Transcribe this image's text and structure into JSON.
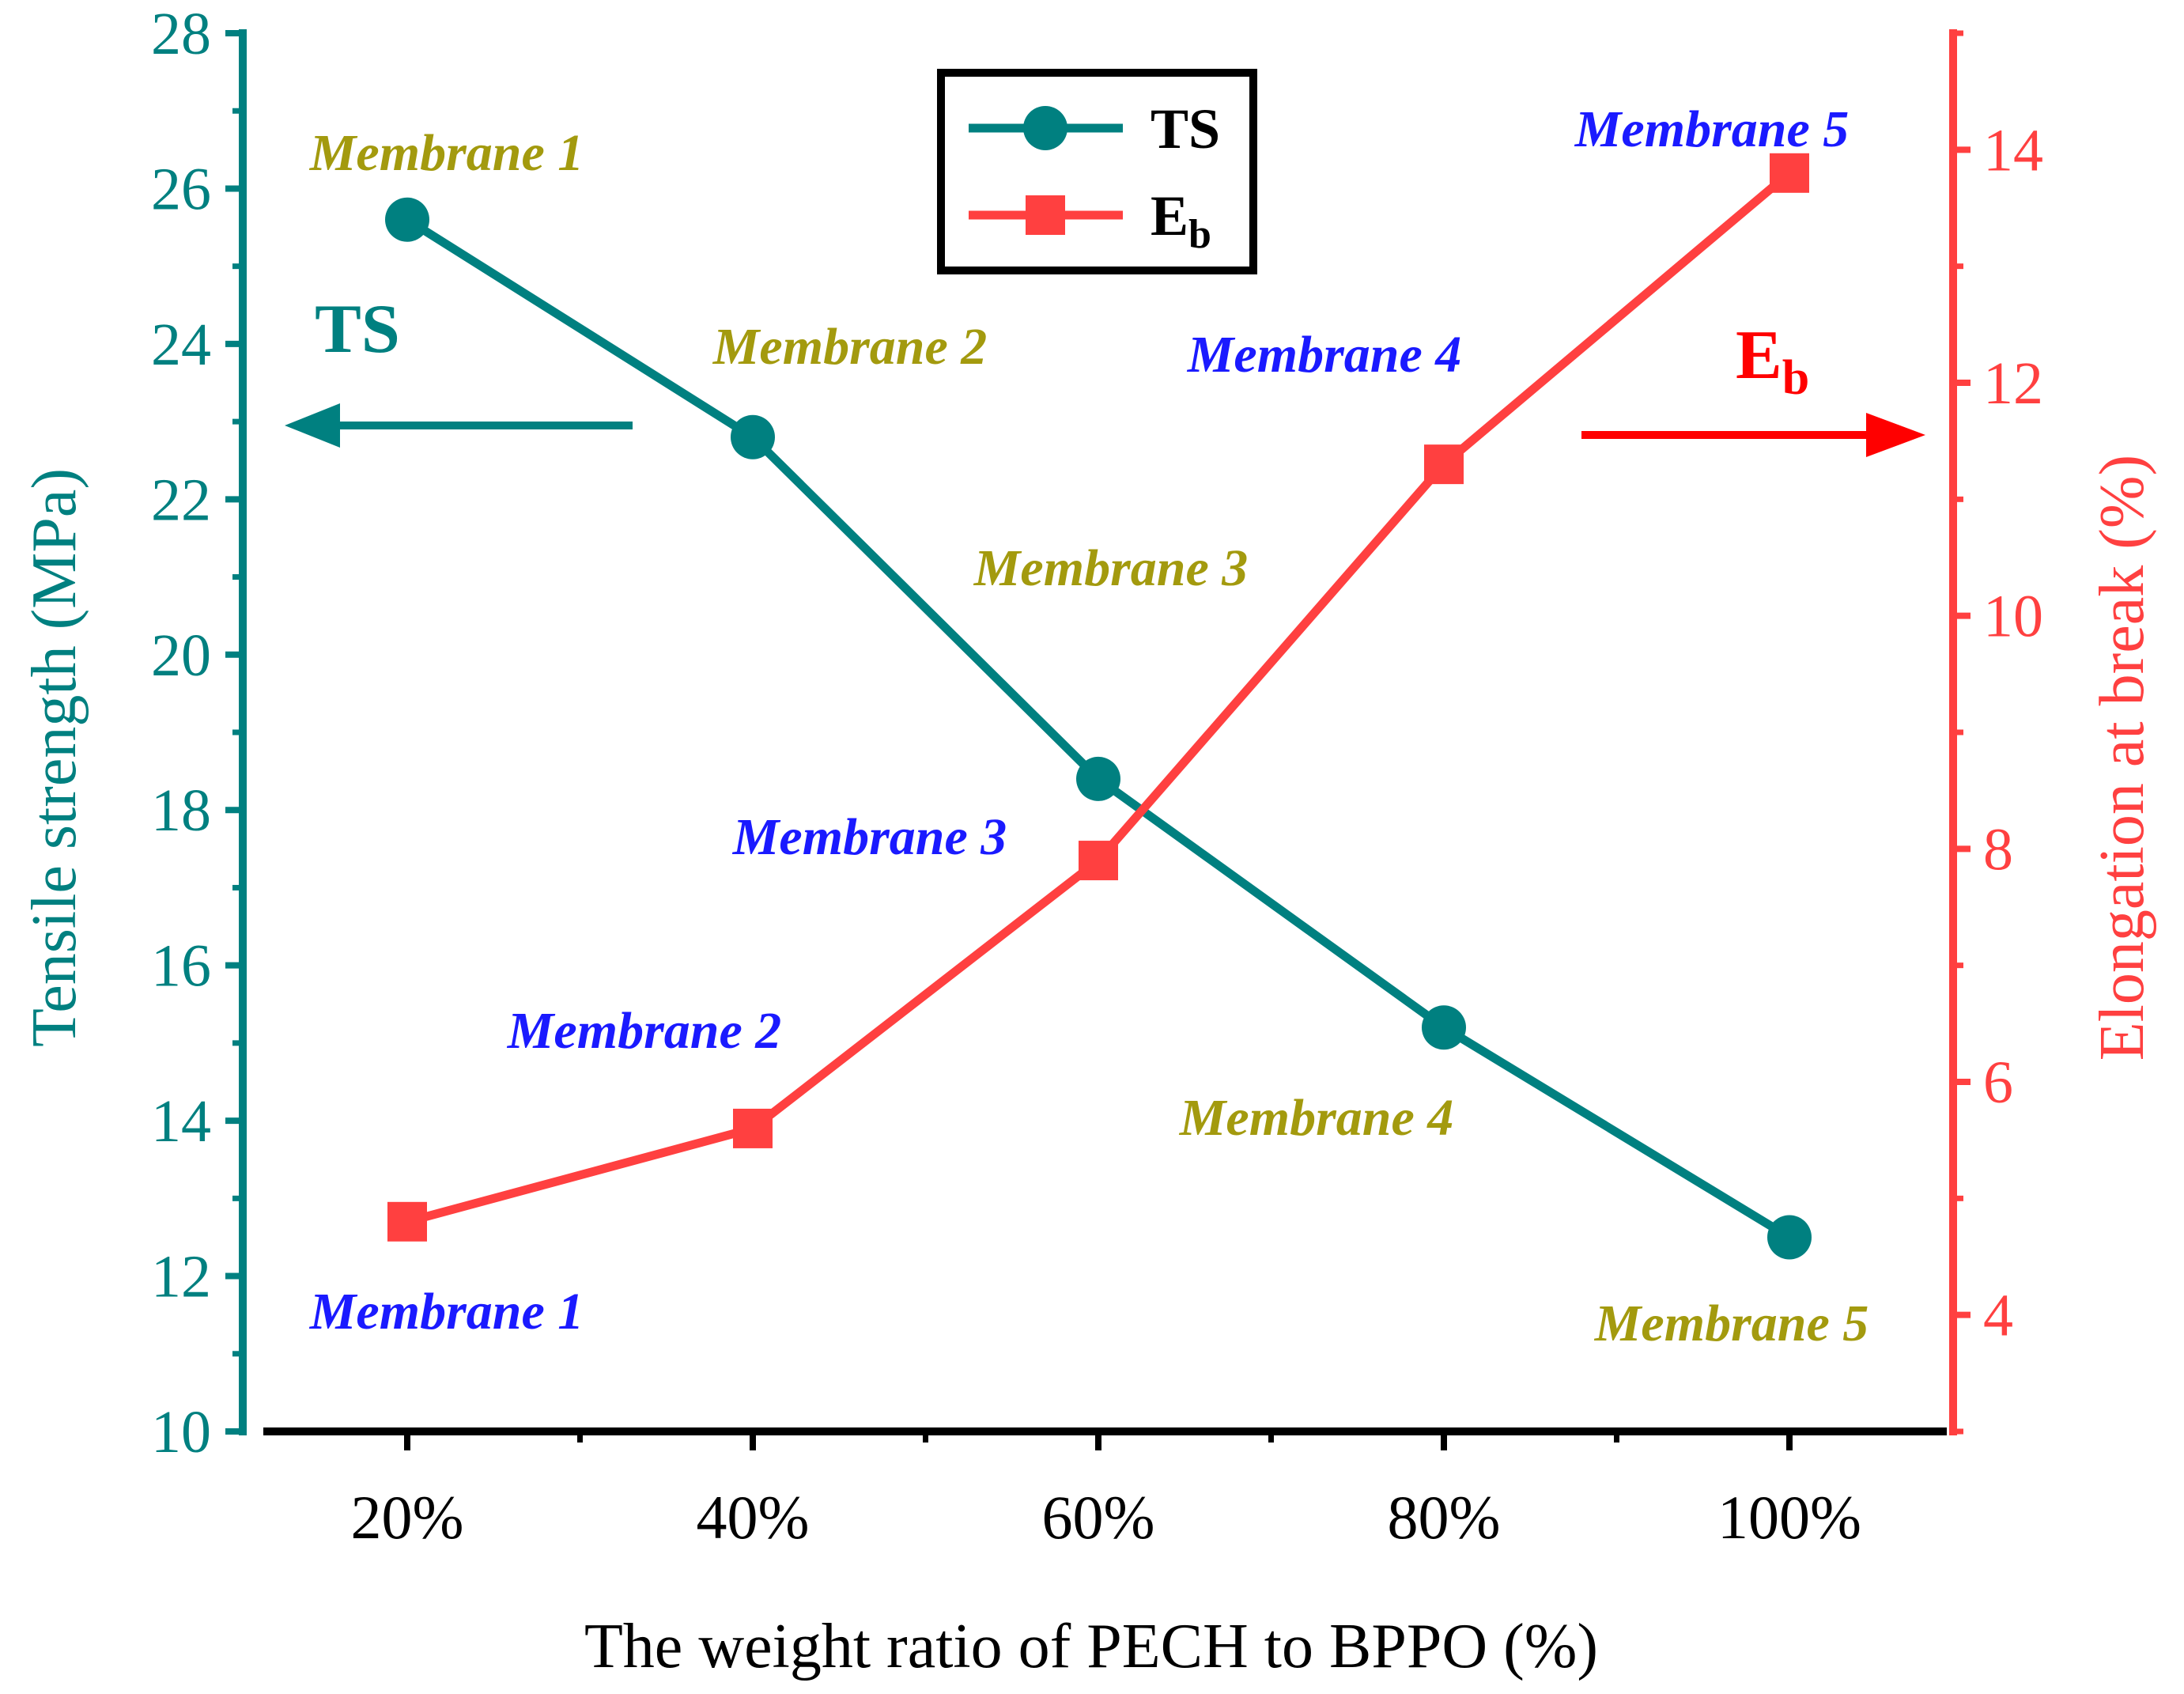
{
  "chart_data": {
    "type": "line",
    "title": "",
    "xlabel": "The weight ratio of PECH to BPPO (%)",
    "categories": [
      "20%",
      "40%",
      "60%",
      "80%",
      "100%"
    ],
    "left_axis": {
      "label": "Tensile strength (MPa)",
      "ylim": [
        10,
        28
      ],
      "ticks": [
        "10",
        "12",
        "14",
        "16",
        "18",
        "20",
        "22",
        "24",
        "26",
        "28"
      ],
      "color": "#008080"
    },
    "right_axis": {
      "label": "Elongation at break (%)",
      "ylim": [
        3,
        15
      ],
      "ticks": [
        "4",
        "6",
        "8",
        "10",
        "12",
        "14"
      ],
      "color": "#ff4040"
    },
    "series": [
      {
        "name": "TS",
        "axis": "left",
        "marker": "circle",
        "color": "#008080",
        "values": [
          25.6,
          22.8,
          18.4,
          15.2,
          12.5
        ]
      },
      {
        "name": "E",
        "name_subscript": "b",
        "axis": "right",
        "marker": "square",
        "color": "#ff4040",
        "values": [
          4.8,
          5.6,
          7.9,
          11.3,
          13.8
        ]
      }
    ],
    "legend": {
      "position": "top-center"
    },
    "annotations": {
      "ts_labels": [
        "Membrane 1",
        "Membrane 2",
        "Membrane 3",
        "Membrane 4",
        "Membrane 5"
      ],
      "eb_labels": [
        "Membrane 1",
        "Membrane 2",
        "Membrane 3",
        "Membrane 4",
        "Membrane 5"
      ],
      "ts_label_color": "#a39a0e",
      "eb_label_color": "#1a1aff",
      "ts_arrow_label": "TS",
      "eb_arrow_label": "E",
      "eb_arrow_subscript": "b",
      "eb_arrow_color": "#ff0000"
    }
  }
}
